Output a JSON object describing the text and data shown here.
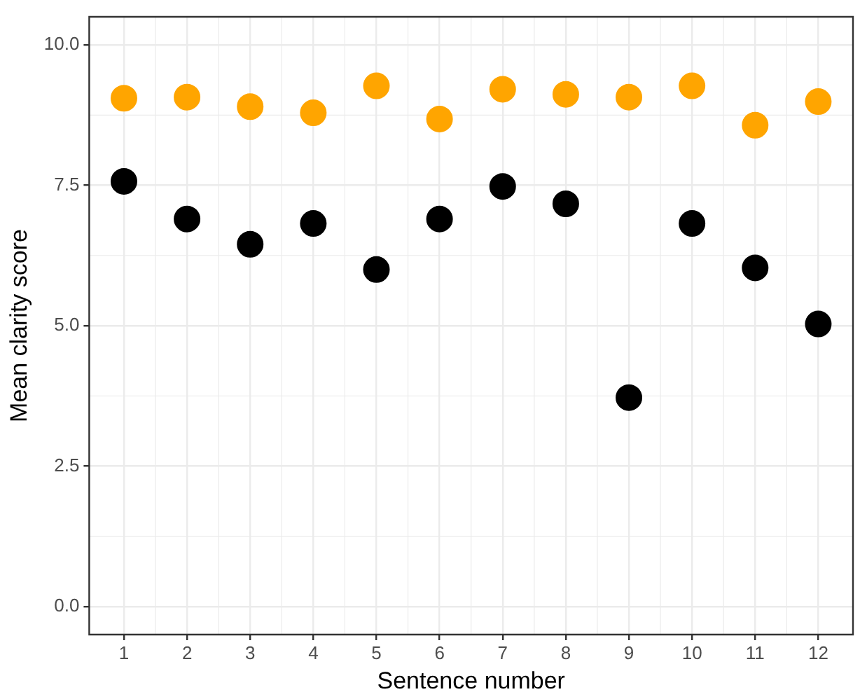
{
  "chart_data": {
    "type": "scatter",
    "xlabel": "Sentence number",
    "ylabel": "Mean clarity score",
    "x": [
      1,
      2,
      3,
      4,
      5,
      6,
      7,
      8,
      9,
      10,
      11,
      12
    ],
    "series": [
      {
        "color": "#ffa500",
        "values": [
          9.05,
          9.07,
          8.9,
          8.79,
          9.27,
          8.68,
          9.21,
          9.12,
          9.07,
          9.27,
          8.57,
          8.99
        ]
      },
      {
        "color": "#000000",
        "values": [
          7.57,
          6.9,
          6.45,
          6.82,
          6.0,
          6.9,
          7.48,
          7.17,
          3.72,
          6.82,
          6.03,
          5.03
        ]
      }
    ],
    "xlim": [
      0.45,
      12.55
    ],
    "xticks": [
      1,
      2,
      3,
      4,
      5,
      6,
      7,
      8,
      9,
      10,
      11,
      12
    ],
    "ylim": [
      -0.5,
      10.5
    ],
    "yticks": [
      {
        "value": 0,
        "label": "0.0"
      },
      {
        "value": 2.5,
        "label": "2.5"
      },
      {
        "value": 5,
        "label": "5.0"
      },
      {
        "value": 7.5,
        "label": "7.5"
      },
      {
        "value": 10,
        "label": "10.0"
      }
    ],
    "grid": true,
    "marker": "circle",
    "legend": false
  }
}
